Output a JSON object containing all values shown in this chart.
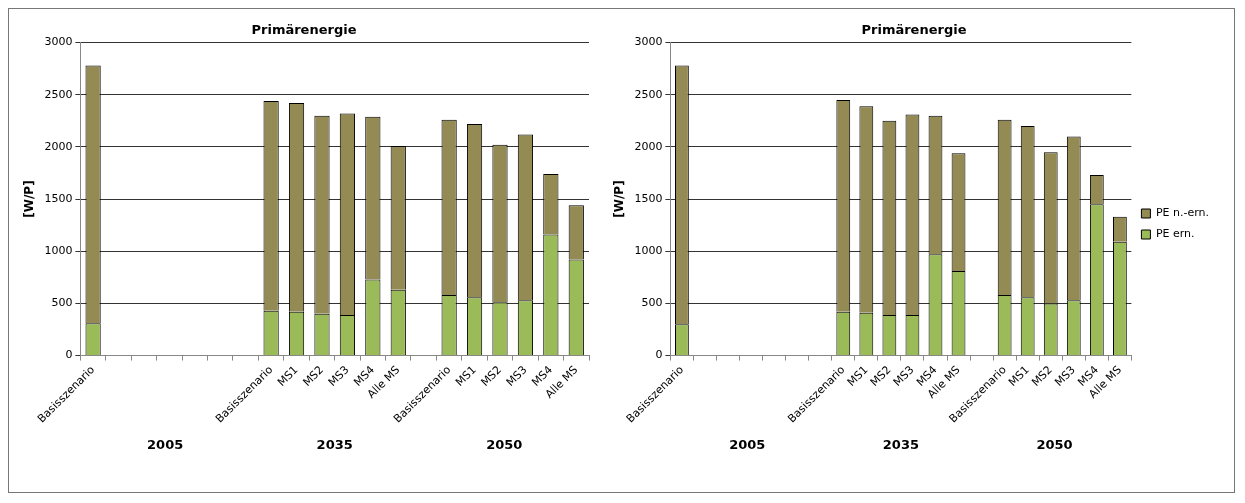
{
  "chart_data": [
    {
      "type": "bar",
      "title": "Primärenergie",
      "ylabel": "[W/P]",
      "stacked": true,
      "grid": "y",
      "legend": false,
      "categories": [
        "Basisszenario",
        null,
        null,
        null,
        null,
        null,
        null,
        "Basisszenario",
        "MS1",
        "MS2",
        "MS3",
        "MS4",
        "Alle MS",
        null,
        "Basisszenario",
        "MS1",
        "MS2",
        "MS3",
        "MS4",
        "Alle MS"
      ],
      "series": [
        {
          "color": "#9bbb59",
          "values": [
            310,
            null,
            null,
            null,
            null,
            null,
            null,
            430,
            420,
            400,
            390,
            730,
            630,
            null,
            580,
            560,
            510,
            530,
            1160,
            920
          ]
        },
        {
          "color": "#948a54",
          "values": [
            2470,
            null,
            null,
            null,
            null,
            null,
            null,
            2010,
            2000,
            1900,
            1930,
            1560,
            1380,
            null,
            1680,
            1660,
            1510,
            1590,
            580,
            520
          ]
        }
      ],
      "ylim": [
        0,
        3000
      ],
      "yticks": [
        0,
        500,
        1000,
        1500,
        2000,
        2500,
        3000
      ],
      "annotations": [
        "2005",
        "2035",
        "2050"
      ]
    },
    {
      "type": "bar",
      "title": "Primärenergie",
      "ylabel": "[W/P]",
      "stacked": true,
      "grid": "y",
      "legend": "right",
      "categories": [
        "Basisszenario",
        null,
        null,
        null,
        null,
        null,
        null,
        "Basisszenario",
        "MS1",
        "MS2",
        "MS3",
        "MS4",
        "Alle MS",
        null,
        "Basisszenario",
        "MS1",
        "MS2",
        "MS3",
        "MS4",
        "Alle MS"
      ],
      "series": [
        {
          "name": "PE ern.",
          "color": "#9bbb59",
          "values": [
            300,
            null,
            null,
            null,
            null,
            null,
            null,
            420,
            410,
            390,
            390,
            970,
            810,
            null,
            580,
            560,
            500,
            530,
            1450,
            1090
          ]
        },
        {
          "name": "PE n.-ern.",
          "color": "#948a54",
          "values": [
            2480,
            null,
            null,
            null,
            null,
            null,
            null,
            2030,
            1980,
            1860,
            1920,
            1330,
            1130,
            null,
            1680,
            1640,
            1450,
            1570,
            280,
            240
          ]
        }
      ],
      "ylim": [
        0,
        3000
      ],
      "yticks": [
        0,
        500,
        1000,
        1500,
        2000,
        2500,
        3000
      ],
      "annotations": [
        "2005",
        "2035",
        "2050"
      ]
    }
  ]
}
